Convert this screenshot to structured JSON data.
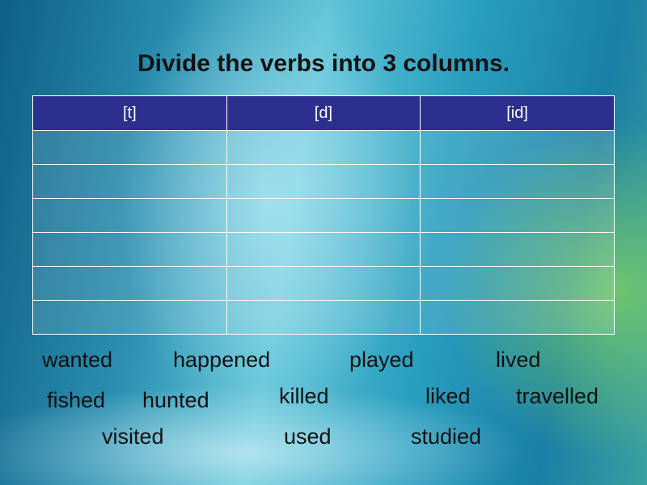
{
  "title": "Divide the verbs into 3 columns.",
  "table": {
    "headers": [
      "[t]",
      "[d]",
      "[id]"
    ]
  },
  "words": [
    "wanted",
    "happened",
    "played",
    "lived",
    "fished",
    "hunted",
    "killed",
    "liked",
    "travelled",
    "visited",
    "used",
    "studied"
  ]
}
